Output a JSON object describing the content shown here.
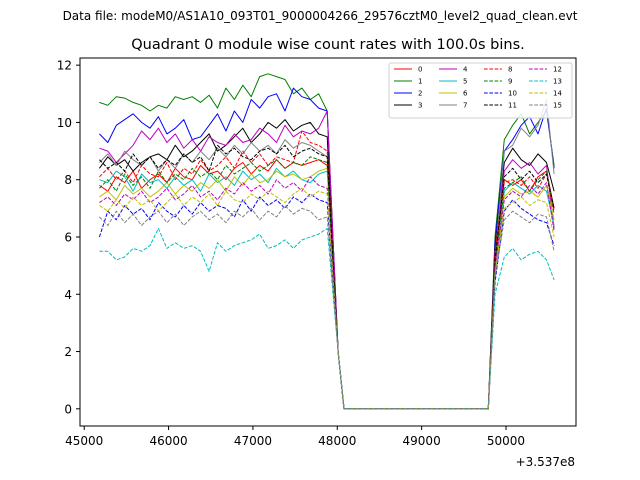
{
  "header": {
    "data_file": "Data file: modeM0/AS1A10_093T01_9000004266_29576cztM0_level2_quad_clean.evt"
  },
  "chart_data": {
    "type": "line",
    "title": "Quadrant 0 module wise count rates with 100.0s bins.",
    "xlabel": "",
    "ylabel": "",
    "x_offset_label": "+3.537e8",
    "xlim": [
      44950,
      50830
    ],
    "ylim": [
      -0.6,
      12.25
    ],
    "x_ticks": [
      45000,
      46000,
      47000,
      48000,
      49000,
      50000
    ],
    "y_ticks": [
      0,
      2,
      4,
      6,
      8,
      10,
      12
    ],
    "legend_position": "top-right",
    "x_segment_1": [
      45180,
      45280,
      45380,
      45480,
      45580,
      45680,
      45780,
      45880,
      45980,
      46080,
      46180,
      46280,
      46380,
      46480,
      46580,
      46680,
      46780,
      46880,
      46980,
      47080,
      47180,
      47280,
      47380,
      47480,
      47580,
      47680,
      47780,
      47880
    ],
    "gap": {
      "x": [
        48010,
        48080,
        49790
      ],
      "y": [
        2.0,
        0.0,
        0.0
      ]
    },
    "x_segment_2": [
      49870,
      49980,
      50080,
      50180,
      50280,
      50380,
      50480,
      50570
    ],
    "series": [
      {
        "name": "0",
        "color": "#ff0000",
        "dash": false,
        "y1": [
          7.8,
          7.6,
          8.1,
          7.9,
          8.3,
          7.7,
          8.0,
          8.2,
          7.9,
          8.4,
          8.1,
          8.0,
          8.5,
          8.2,
          8.3,
          8.0,
          8.4,
          8.6,
          8.2,
          8.5,
          8.3,
          8.7,
          8.4,
          8.6,
          8.5,
          8.6,
          8.7,
          8.5
        ],
        "y2": [
          5.0,
          8.0,
          7.8,
          8.0,
          7.6,
          8.1,
          8.3,
          7.0
        ]
      },
      {
        "name": "1",
        "color": "#008000",
        "dash": false,
        "y1": [
          10.7,
          10.6,
          10.9,
          10.85,
          10.7,
          10.6,
          10.4,
          10.6,
          10.5,
          10.9,
          10.8,
          10.9,
          10.7,
          10.95,
          10.5,
          11.2,
          10.8,
          11.3,
          10.9,
          11.6,
          11.7,
          11.6,
          11.5,
          11.0,
          11.2,
          10.8,
          11.0,
          10.4
        ],
        "y2": [
          6.0,
          9.4,
          9.9,
          10.3,
          9.6,
          10.0,
          10.4,
          8.5
        ]
      },
      {
        "name": "2",
        "color": "#0000ff",
        "dash": false,
        "y1": [
          9.6,
          9.3,
          9.9,
          10.1,
          10.3,
          10.0,
          9.8,
          10.2,
          9.6,
          9.8,
          10.1,
          9.4,
          9.5,
          9.9,
          10.3,
          9.7,
          10.4,
          10.0,
          10.8,
          10.5,
          10.9,
          11.0,
          10.4,
          11.2,
          10.9,
          10.8,
          10.5,
          10.4
        ],
        "y2": [
          5.8,
          9.0,
          9.4,
          9.9,
          10.2,
          9.6,
          10.5,
          8.4
        ]
      },
      {
        "name": "3",
        "color": "#000000",
        "dash": false,
        "y1": [
          8.4,
          8.8,
          8.5,
          8.7,
          8.3,
          8.6,
          8.8,
          8.9,
          8.7,
          9.2,
          8.8,
          9.0,
          9.3,
          9.6,
          9.0,
          9.2,
          9.5,
          9.8,
          9.3,
          9.6,
          10.0,
          9.8,
          10.1,
          9.7,
          9.9,
          10.0,
          9.6,
          9.5
        ],
        "y2": [
          5.5,
          8.6,
          9.1,
          8.7,
          8.5,
          8.9,
          8.6,
          7.6
        ]
      },
      {
        "name": "4",
        "color": "#bf00bf",
        "dash": false,
        "y1": [
          9.1,
          9.0,
          8.6,
          8.9,
          9.2,
          9.7,
          9.4,
          9.8,
          9.3,
          9.6,
          9.1,
          9.4,
          9.0,
          9.5,
          9.3,
          9.2,
          9.6,
          9.3,
          9.4,
          9.8,
          9.6,
          9.3,
          9.9,
          9.5,
          9.7,
          9.6,
          9.8,
          10.4
        ],
        "y2": [
          5.3,
          8.3,
          8.7,
          8.4,
          8.6,
          8.2,
          8.5,
          6.3
        ]
      },
      {
        "name": "5",
        "color": "#00bfbf",
        "dash": false,
        "y1": [
          8.0,
          7.9,
          8.3,
          8.1,
          7.6,
          8.2,
          7.9,
          8.0,
          7.7,
          8.1,
          7.8,
          8.0,
          7.6,
          8.2,
          7.9,
          8.1,
          7.8,
          8.3,
          8.0,
          8.2,
          7.9,
          8.4,
          8.1,
          8.3,
          8.0,
          7.9,
          8.2,
          8.3
        ],
        "y2": [
          4.6,
          7.6,
          7.9,
          7.7,
          7.5,
          7.8,
          7.6,
          6.4
        ]
      },
      {
        "name": "6",
        "color": "#bfbf00",
        "dash": false,
        "y1": [
          7.4,
          7.6,
          7.3,
          7.8,
          7.5,
          7.7,
          7.4,
          7.6,
          7.9,
          7.5,
          7.8,
          7.6,
          7.9,
          7.7,
          8.0,
          7.6,
          8.1,
          7.8,
          8.2,
          7.9,
          8.0,
          8.3,
          8.1,
          8.2,
          8.0,
          8.1,
          8.3,
          8.4
        ],
        "y2": [
          4.5,
          7.4,
          7.7,
          7.5,
          7.6,
          7.4,
          7.8,
          6.6
        ]
      },
      {
        "name": "7",
        "color": "#808080",
        "dash": false,
        "y1": [
          8.6,
          8.9,
          8.5,
          9.0,
          8.7,
          8.5,
          8.8,
          8.3,
          8.7,
          8.4,
          8.9,
          8.6,
          9.0,
          8.7,
          9.1,
          8.8,
          9.2,
          8.9,
          9.3,
          9.0,
          9.2,
          8.9,
          9.4,
          9.1,
          9.3,
          9.2,
          9.0,
          8.8
        ],
        "y2": [
          5.2,
          9.0,
          9.2,
          9.8,
          9.5,
          9.9,
          10.8,
          8.2
        ]
      },
      {
        "name": "8",
        "color": "#ff0000",
        "dash": true,
        "y1": [
          8.1,
          8.4,
          8.0,
          8.3,
          7.9,
          8.5,
          8.2,
          8.1,
          8.6,
          8.0,
          8.4,
          8.2,
          8.7,
          8.3,
          8.5,
          8.8,
          8.4,
          9.0,
          8.6,
          8.9,
          8.5,
          8.8,
          8.7,
          8.6,
          9.7,
          9.3,
          9.2,
          9.0
        ],
        "y2": [
          5.5,
          7.9,
          8.0,
          7.8,
          8.1,
          7.7,
          8.2,
          6.8
        ]
      },
      {
        "name": "9",
        "color": "#008000",
        "dash": true,
        "y1": [
          7.7,
          8.0,
          7.6,
          8.2,
          7.8,
          8.1,
          7.7,
          8.3,
          7.9,
          8.2,
          8.0,
          8.4,
          8.1,
          8.3,
          8.0,
          8.5,
          8.2,
          8.4,
          8.6,
          8.3,
          8.5,
          8.7,
          8.4,
          8.6,
          8.5,
          8.8,
          8.7,
          8.6
        ],
        "y2": [
          5.1,
          7.7,
          7.9,
          8.1,
          7.6,
          8.0,
          8.3,
          6.9
        ]
      },
      {
        "name": "10",
        "color": "#0000ff",
        "dash": true,
        "y1": [
          6.0,
          6.9,
          6.6,
          7.1,
          6.8,
          7.0,
          6.6,
          7.2,
          6.9,
          6.7,
          7.1,
          6.8,
          7.2,
          6.9,
          7.1,
          7.0,
          6.7,
          7.3,
          6.9,
          7.4,
          7.1,
          7.3,
          7.0,
          7.4,
          7.2,
          7.5,
          7.3,
          7.2
        ],
        "y2": [
          4.4,
          6.9,
          7.3,
          7.0,
          6.8,
          6.6,
          6.5,
          5.7
        ]
      },
      {
        "name": "11",
        "color": "#000000",
        "dash": true,
        "y1": [
          8.7,
          8.4,
          8.6,
          8.3,
          8.9,
          8.5,
          8.8,
          8.4,
          8.7,
          8.5,
          8.9,
          8.6,
          8.8,
          8.3,
          9.2,
          8.9,
          9.1,
          8.8,
          8.7,
          9.0,
          9.1,
          8.9,
          9.2,
          8.8,
          9.0,
          9.1,
          8.9,
          8.8
        ],
        "y2": [
          5.2,
          8.1,
          8.4,
          8.0,
          8.3,
          7.9,
          8.2,
          7.0
        ]
      },
      {
        "name": "12",
        "color": "#bf00bf",
        "dash": true,
        "y1": [
          7.2,
          7.4,
          7.1,
          7.5,
          7.3,
          7.6,
          7.2,
          7.4,
          7.7,
          7.3,
          7.5,
          7.8,
          7.4,
          7.6,
          7.3,
          7.7,
          7.5,
          7.9,
          7.6,
          7.8,
          7.5,
          8.0,
          7.7,
          7.9,
          7.6,
          8.1,
          7.8,
          7.7
        ],
        "y2": [
          4.9,
          7.3,
          7.6,
          7.4,
          7.8,
          7.5,
          7.9,
          6.2
        ]
      },
      {
        "name": "13",
        "color": "#00bfbf",
        "dash": true,
        "y1": [
          5.5,
          5.5,
          5.2,
          5.3,
          5.6,
          5.5,
          5.7,
          6.3,
          5.6,
          5.8,
          5.6,
          5.7,
          5.5,
          4.8,
          5.8,
          5.5,
          5.7,
          5.8,
          5.9,
          6.1,
          5.6,
          5.7,
          5.9,
          5.6,
          5.9,
          6.0,
          6.1,
          6.3
        ],
        "y2": [
          4.0,
          5.3,
          5.6,
          5.2,
          5.4,
          5.5,
          5.2,
          4.5
        ]
      },
      {
        "name": "14",
        "color": "#bfbf00",
        "dash": true,
        "y1": [
          7.1,
          6.9,
          7.3,
          7.0,
          7.4,
          7.1,
          7.3,
          6.9,
          7.2,
          7.5,
          7.1,
          7.4,
          7.2,
          7.5,
          7.1,
          7.6,
          7.3,
          7.2,
          7.5,
          7.3,
          7.6,
          7.4,
          7.2,
          7.5,
          7.7,
          7.4,
          7.6,
          7.5
        ],
        "y2": [
          4.7,
          7.0,
          7.2,
          7.4,
          7.1,
          7.3,
          7.2,
          6.0
        ]
      },
      {
        "name": "15",
        "color": "#808080",
        "dash": true,
        "y1": [
          6.7,
          6.4,
          6.9,
          6.5,
          6.8,
          6.4,
          6.7,
          6.9,
          6.5,
          6.8,
          6.4,
          6.7,
          6.9,
          6.6,
          6.8,
          6.5,
          6.9,
          6.7,
          7.0,
          6.6,
          6.9,
          6.7,
          7.1,
          6.8,
          7.0,
          6.9,
          6.6,
          6.7
        ],
        "y2": [
          4.6,
          6.6,
          6.9,
          6.7,
          6.5,
          6.8,
          6.7,
          5.5
        ]
      }
    ]
  }
}
